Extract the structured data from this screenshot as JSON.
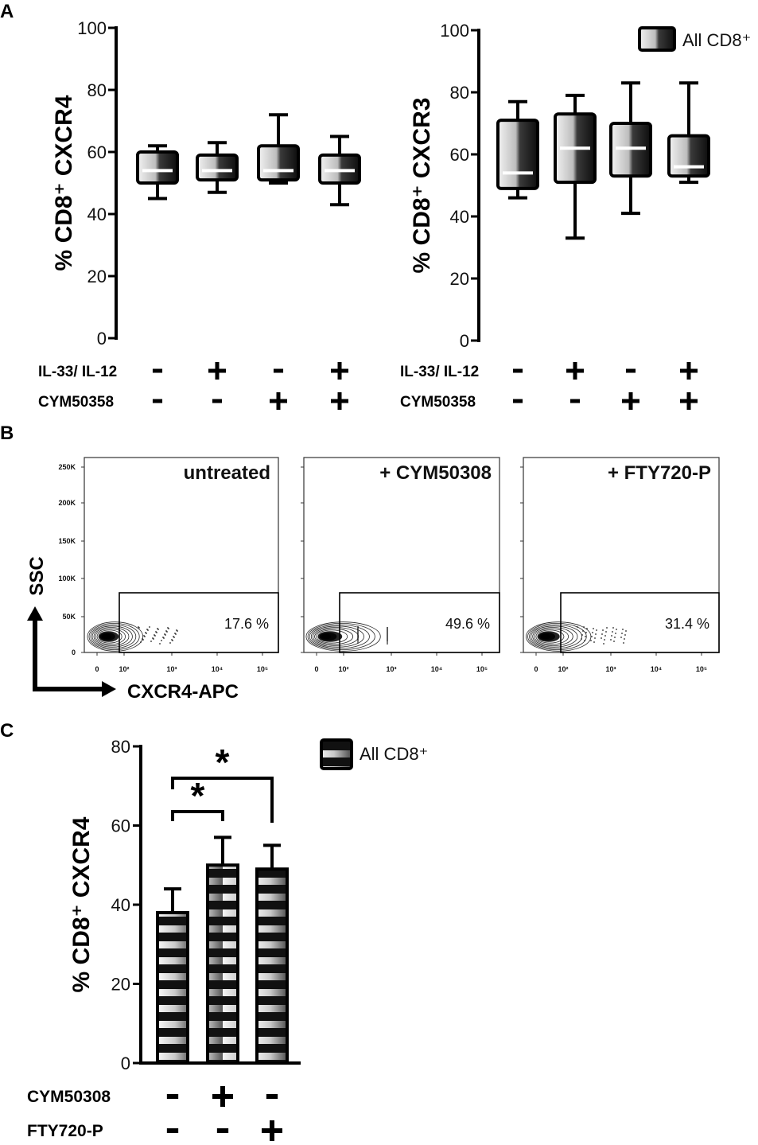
{
  "panels": {
    "A": "A",
    "B": "B",
    "C": "C"
  },
  "legend_box": "All CD8⁺",
  "legend_bar": "All CD8⁺",
  "treatment_rows_A": [
    {
      "label": "IL-33/ IL-12",
      "values": [
        "-",
        "+",
        "-",
        "+"
      ]
    },
    {
      "label": "CYM50358",
      "values": [
        "-",
        "-",
        "+",
        "+"
      ]
    }
  ],
  "treatment_rows_C": [
    {
      "label": "CYM50308",
      "values": [
        "-",
        "+",
        "-"
      ]
    },
    {
      "label": "FTY720-P",
      "values": [
        "-",
        "-",
        "+"
      ]
    }
  ],
  "flow": {
    "ylabel": "SSC",
    "xlabel": "CXCR4-APC",
    "y_ticks": [
      "0",
      "50K",
      "100K",
      "150K",
      "200K",
      "250K"
    ],
    "x_ticks": [
      "0",
      "10²",
      "10³",
      "10⁴",
      "10⁵"
    ],
    "plots": [
      {
        "title": "untreated",
        "percent": "17.6 %"
      },
      {
        "title": "+ CYM50308",
        "percent": "49.6 %"
      },
      {
        "title": "+ FTY720-P",
        "percent": "31.4 %"
      }
    ]
  },
  "chart_data": [
    {
      "type": "box",
      "panel": "A",
      "ylabel": "% CD8⁺ CXCR4",
      "ylim": [
        0,
        100
      ],
      "yticks": [
        0,
        20,
        40,
        60,
        80,
        100
      ],
      "legend": "All CD8⁺",
      "boxes": [
        {
          "min": 45,
          "q1": 50,
          "median": 54,
          "q3": 60,
          "max": 62
        },
        {
          "min": 47,
          "q1": 51,
          "median": 54,
          "q3": 59,
          "max": 63
        },
        {
          "min": 50,
          "q1": 51,
          "median": 54,
          "q3": 62,
          "max": 72
        },
        {
          "min": 43,
          "q1": 50,
          "median": 54,
          "q3": 59,
          "max": 65
        }
      ]
    },
    {
      "type": "box",
      "panel": "A",
      "ylabel": "% CD8⁺ CXCR3",
      "ylim": [
        0,
        100
      ],
      "yticks": [
        0,
        20,
        40,
        60,
        80,
        100
      ],
      "legend": "All CD8⁺",
      "boxes": [
        {
          "min": 46,
          "q1": 49,
          "median": 54,
          "q3": 71,
          "max": 77
        },
        {
          "min": 33,
          "q1": 51,
          "median": 62,
          "q3": 73,
          "max": 79
        },
        {
          "min": 41,
          "q1": 53,
          "median": 62,
          "q3": 70,
          "max": 83
        },
        {
          "min": 51,
          "q1": 53,
          "median": 56,
          "q3": 66,
          "max": 83
        }
      ]
    },
    {
      "type": "bar",
      "panel": "C",
      "ylabel": "% CD8⁺ CXCR4",
      "ylim": [
        0,
        80
      ],
      "yticks": [
        0,
        20,
        40,
        60,
        80
      ],
      "legend": "All CD8⁺",
      "values": [
        38,
        50,
        49
      ],
      "errors": [
        6,
        7,
        6
      ],
      "significance": [
        {
          "from": 0,
          "to": 1,
          "label": "*"
        },
        {
          "from": 0,
          "to": 2,
          "label": "*"
        }
      ]
    }
  ]
}
